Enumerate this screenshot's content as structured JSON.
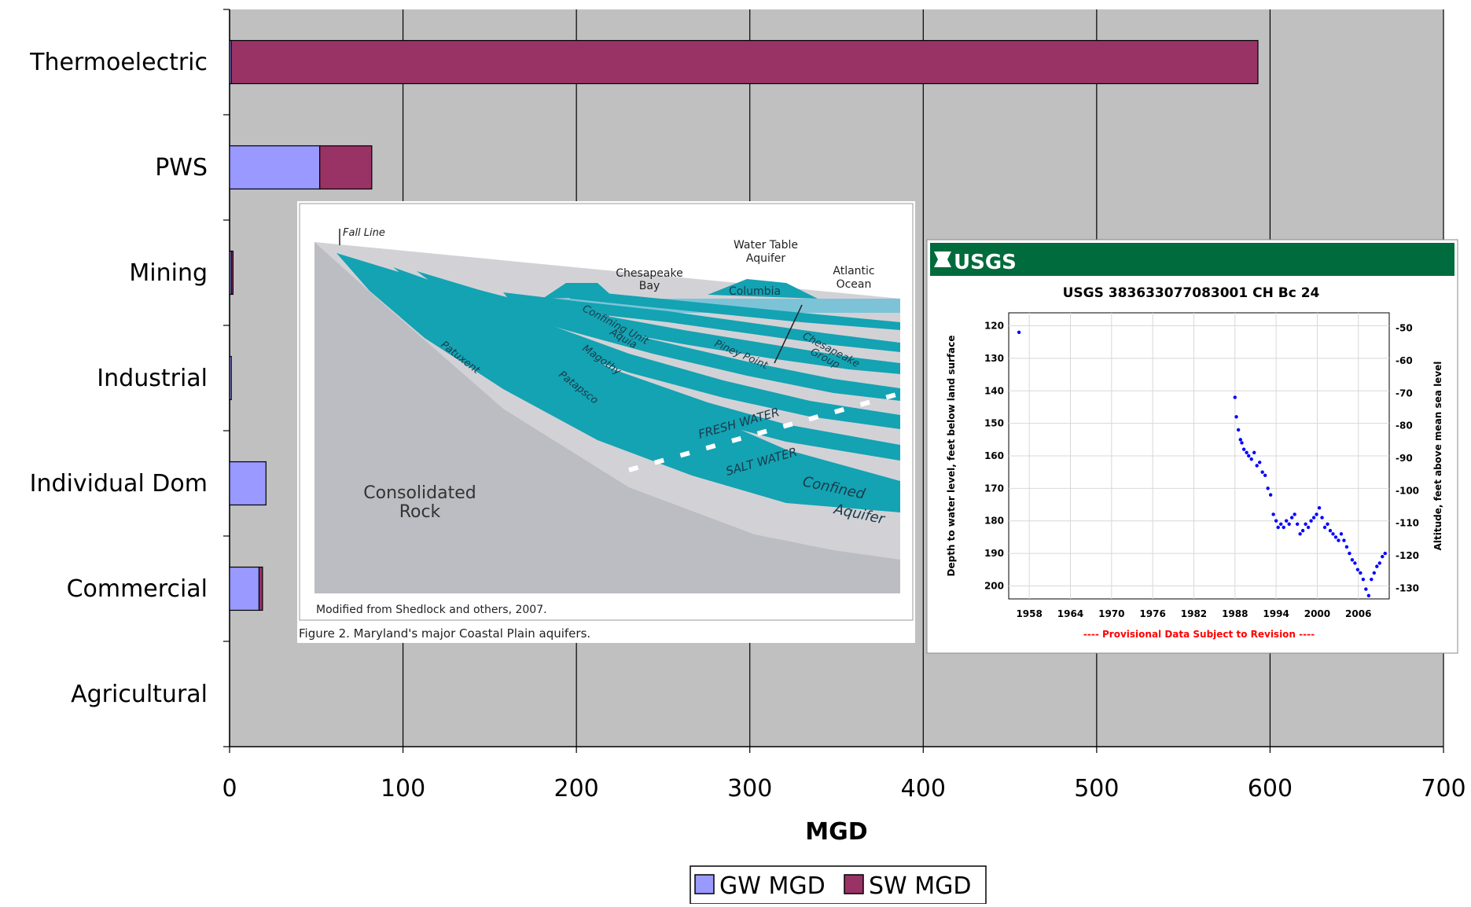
{
  "chart_data": [
    {
      "type": "bar",
      "orientation": "horizontal",
      "stacked": true,
      "categories": [
        "Thermoelectric",
        "PWS",
        "Mining",
        "Industrial",
        "Individual Dom",
        "Commercial",
        "Agricultural"
      ],
      "series": [
        {
          "name": "GW MGD",
          "color": "#9999ff",
          "values": [
            1,
            52,
            1,
            1,
            21,
            17,
            0
          ]
        },
        {
          "name": "SW MGD",
          "color": "#993366",
          "values": [
            592,
            30,
            1,
            0,
            0,
            2,
            0
          ]
        }
      ],
      "xlabel": "MGD",
      "xlim": [
        0,
        700
      ],
      "xticks": [
        0,
        100,
        200,
        300,
        400,
        500,
        600,
        700
      ],
      "grid": true,
      "legend": "bottom",
      "plot_background": "#c0c0c0"
    },
    {
      "type": "scatter",
      "title": "USGS 383633077083001 CH Bc  24",
      "ylabel": "Depth to water level, feet below land surface",
      "y2label": "Altitude, feet above mean sea level",
      "xticks": [
        1958,
        1964,
        1970,
        1976,
        1982,
        1988,
        1994,
        2000,
        2006
      ],
      "yticks": [
        120,
        130,
        140,
        150,
        160,
        170,
        180,
        190,
        200
      ],
      "y2ticks": [
        -50,
        -60,
        -70,
        -80,
        -90,
        -100,
        -110,
        -120,
        -130
      ],
      "xlim": [
        1955,
        2010.5
      ],
      "ylim": [
        116,
        204
      ],
      "y_inverted": true,
      "footer": "---- Provisional Data Subject to Revision ----",
      "color": "#0000ff",
      "x": [
        1956.5,
        1988.0,
        1988.2,
        1988.5,
        1988.8,
        1989.0,
        1989.3,
        1989.7,
        1990.0,
        1990.4,
        1990.8,
        1991.2,
        1991.6,
        1992.0,
        1992.4,
        1992.8,
        1993.2,
        1993.6,
        1994.0,
        1994.3,
        1994.7,
        1995.1,
        1995.5,
        1995.9,
        1996.3,
        1996.7,
        1997.1,
        1997.5,
        1997.9,
        1998.3,
        1998.7,
        1999.1,
        1999.5,
        1999.9,
        2000.3,
        2000.7,
        2001.1,
        2001.5,
        2001.9,
        2002.3,
        2002.7,
        2003.1,
        2003.5,
        2003.9,
        2004.3,
        2004.7,
        2005.1,
        2005.5,
        2005.9,
        2006.3,
        2006.7,
        2007.1,
        2007.5,
        2007.9,
        2008.3,
        2008.7,
        2009.1,
        2009.5,
        2009.9
      ],
      "y": [
        122,
        142,
        148,
        152,
        155,
        156,
        158,
        159,
        160,
        161,
        159,
        163,
        162,
        165,
        166,
        170,
        172,
        178,
        180,
        182,
        181,
        182,
        180,
        181,
        179,
        178,
        181,
        184,
        183,
        181,
        182,
        180,
        179,
        178,
        176,
        179,
        182,
        181,
        183,
        184,
        185,
        186,
        184,
        186,
        188,
        190,
        192,
        193,
        195,
        196,
        198,
        201,
        203,
        198,
        196,
        194,
        193,
        191,
        190
      ]
    }
  ],
  "inset_figure": {
    "labels": {
      "fall_line": "Fall Line",
      "chesapeake_bay": [
        "Chesapeake",
        "Bay"
      ],
      "water_table_aquifer": [
        "Water Table",
        "Aquifer"
      ],
      "atlantic_ocean": [
        "Atlantic",
        "Ocean"
      ],
      "columbia": "Columbia",
      "confining_unit": "Confining Unit",
      "aquia": "Aquia",
      "magothy": "Magothy",
      "piney_point": "Piney Point",
      "chesapeake_group": [
        "Chesapeake",
        "Group"
      ],
      "patuxent": "Patuxent",
      "patapsco": "Patapsco",
      "fresh_water": "FRESH WATER",
      "salt_water": "SALT WATER",
      "confined_aquifer": [
        "Confined",
        "Aquifer"
      ],
      "consolidated_rock": [
        "Consolidated",
        "Rock"
      ],
      "credit": "Modified from Shedlock and others, 2007.",
      "caption": "Figure  2.  Maryland's major Coastal Plain aquifers."
    }
  },
  "usgs_logo_text": "USGS"
}
